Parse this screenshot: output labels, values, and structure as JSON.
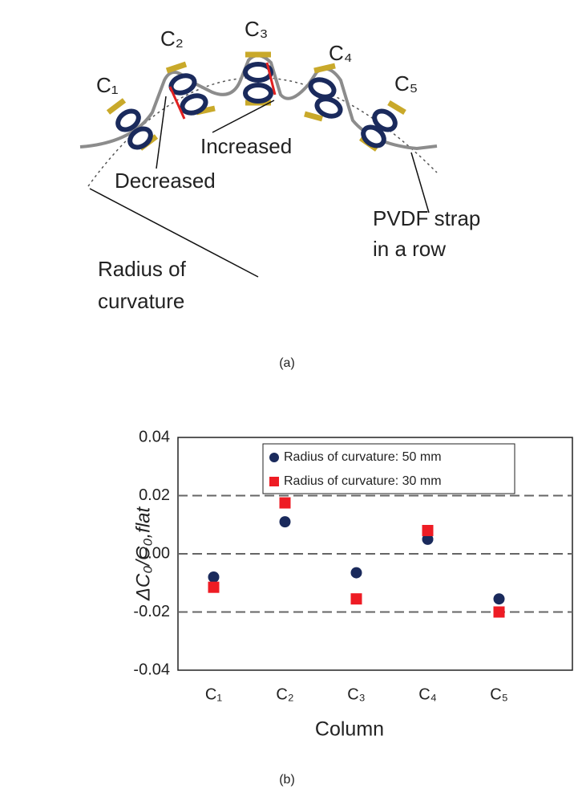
{
  "diagram": {
    "column_labels": [
      "C₁",
      "C₂",
      "C₃",
      "C₄",
      "C₅"
    ],
    "increased": "Increased",
    "decreased": "Decreased",
    "strap_label": [
      "PVDF strap",
      "in a row"
    ],
    "radius_label": [
      "Radius of",
      "curvature"
    ]
  },
  "captions": [
    "(a)",
    "(b)"
  ],
  "chart_data": {
    "type": "scatter",
    "x_label": "Column",
    "y_label": "ΔC₀/C₀,flat",
    "categories": [
      "C₁",
      "C₂",
      "C₃",
      "C₄",
      "C₅"
    ],
    "series": [
      {
        "name": "Radius of curvature: 50 mm",
        "color": "#1a2a5c",
        "marker": "circle",
        "values": [
          -0.008,
          0.011,
          -0.0065,
          0.005,
          -0.0155
        ]
      },
      {
        "name": "Radius of curvature: 30 mm",
        "color": "#ee1c24",
        "marker": "square",
        "values": [
          -0.0115,
          0.0175,
          -0.0155,
          0.008,
          -0.02
        ]
      }
    ],
    "ylim": [
      -0.04,
      0.04
    ],
    "yticks": [
      -0.04,
      -0.02,
      {
        "value": 0,
        "label": "0.00"
      },
      0.02,
      0.04
    ],
    "grid": true,
    "legend": "upper right"
  }
}
